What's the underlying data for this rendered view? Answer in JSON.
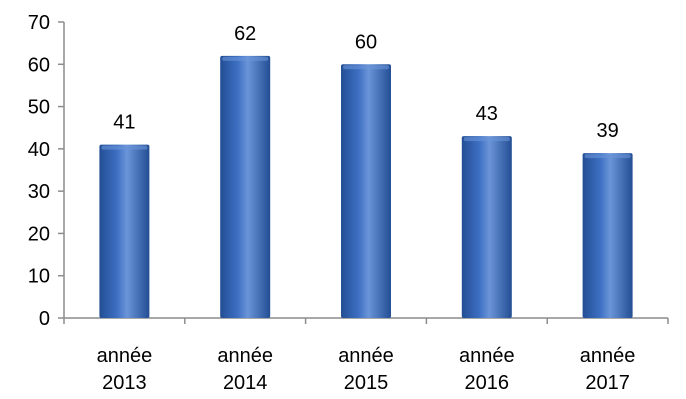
{
  "chart_data": {
    "type": "bar",
    "categories": [
      "année 2013",
      "année 2014",
      "année 2015",
      "année 2016",
      "année 2017"
    ],
    "category_lines": [
      [
        "année",
        "2013"
      ],
      [
        "année",
        "2014"
      ],
      [
        "année",
        "2015"
      ],
      [
        "année",
        "2016"
      ],
      [
        "année",
        "2017"
      ]
    ],
    "values": [
      41,
      62,
      60,
      43,
      39
    ],
    "data_labels": [
      "41",
      "62",
      "60",
      "43",
      "39"
    ],
    "title": "",
    "xlabel": "",
    "ylabel": "",
    "ylim": [
      0,
      70
    ],
    "yticks": [
      0,
      10,
      20,
      30,
      40,
      50,
      60,
      70
    ],
    "ytick_labels": [
      "0",
      "10",
      "20",
      "30",
      "40",
      "50",
      "60",
      "70"
    ],
    "grid": false,
    "legend": "none",
    "colors": {
      "bar_light": "#6b95d8",
      "bar_mid": "#3d6fc2",
      "bar_dark": "#234e94",
      "axis": "#8c8c8c",
      "text": "#000000"
    }
  }
}
